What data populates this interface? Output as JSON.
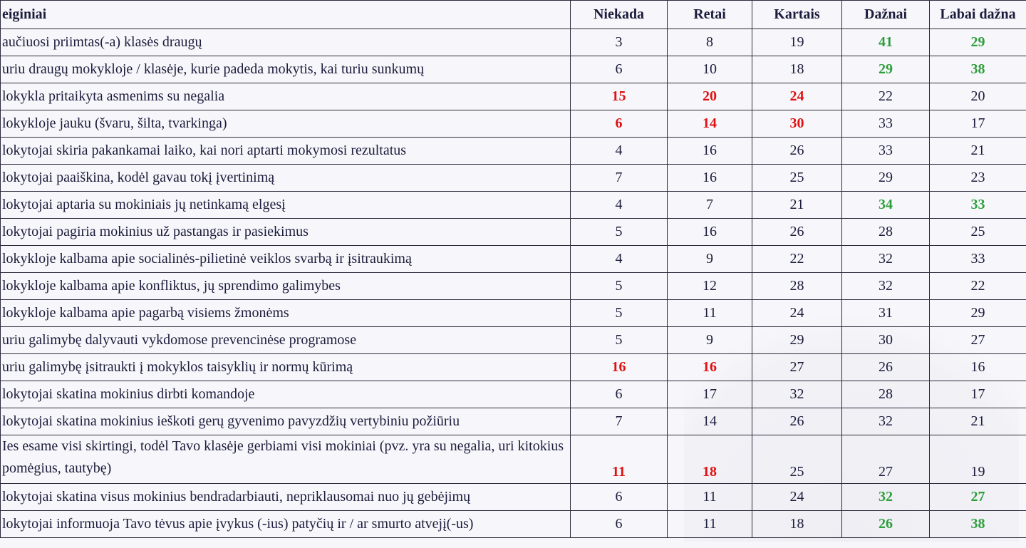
{
  "colors": {
    "high": "#2e9e3c",
    "low": "#e01010",
    "text": "#1c1c3c"
  },
  "table": {
    "headers": [
      "eiginiai",
      "Niekada",
      "Retai",
      "Kartais",
      "Dažnai",
      "Labai dažna"
    ],
    "rows": [
      {
        "label": "aučiuosi priimtas(-a) klasės draugų",
        "values": [
          3,
          8,
          19,
          41,
          29
        ],
        "hl": [
          "",
          "",
          "",
          "g",
          "g"
        ]
      },
      {
        "label": "uriu draugų mokykloje / klasėje, kurie padeda mokytis, kai turiu sunkumų",
        "values": [
          6,
          10,
          18,
          29,
          38
        ],
        "hl": [
          "",
          "",
          "",
          "g",
          "g"
        ]
      },
      {
        "label": "lokykla pritaikyta asmenims su negalia",
        "values": [
          15,
          20,
          24,
          22,
          20
        ],
        "hl": [
          "r",
          "r",
          "r",
          "",
          ""
        ]
      },
      {
        "label": "lokykloje jauku (švaru, šilta, tvarkinga)",
        "values": [
          6,
          14,
          30,
          33,
          17
        ],
        "hl": [
          "r",
          "r",
          "r",
          "",
          ""
        ]
      },
      {
        "label": "lokytojai skiria pakankamai laiko, kai nori aptarti mokymosi rezultatus",
        "values": [
          4,
          16,
          26,
          33,
          21
        ],
        "hl": [
          "",
          "",
          "",
          "",
          ""
        ]
      },
      {
        "label": "lokytojai paaiškina, kodėl gavau tokį įvertinimą",
        "values": [
          7,
          16,
          25,
          29,
          23
        ],
        "hl": [
          "",
          "",
          "",
          "",
          ""
        ]
      },
      {
        "label": "lokytojai aptaria su mokiniais jų netinkamą elgesį",
        "values": [
          4,
          7,
          21,
          34,
          33
        ],
        "hl": [
          "",
          "",
          "",
          "g",
          "g"
        ]
      },
      {
        "label": "lokytojai pagiria mokinius už pastangas ir pasiekimus",
        "values": [
          5,
          16,
          26,
          28,
          25
        ],
        "hl": [
          "",
          "",
          "",
          "",
          ""
        ]
      },
      {
        "label": "lokykloje kalbama apie socialinės-pilietinė veiklos svarbą ir įsitraukimą",
        "values": [
          4,
          9,
          22,
          32,
          33
        ],
        "hl": [
          "",
          "",
          "",
          "",
          ""
        ]
      },
      {
        "label": "lokykloje kalbama apie konfliktus, jų sprendimo galimybes",
        "values": [
          5,
          12,
          28,
          32,
          22
        ],
        "hl": [
          "",
          "",
          "",
          "",
          ""
        ]
      },
      {
        "label": "lokykloje kalbama apie pagarbą visiems žmonėms",
        "values": [
          5,
          11,
          24,
          31,
          29
        ],
        "hl": [
          "",
          "",
          "",
          "",
          ""
        ]
      },
      {
        "label": "uriu galimybę dalyvauti vykdomose prevencinėse programose",
        "values": [
          5,
          9,
          29,
          30,
          27
        ],
        "hl": [
          "",
          "",
          "",
          "",
          ""
        ]
      },
      {
        "label": "uriu galimybę įsitraukti į mokyklos taisyklių ir normų kūrimą",
        "values": [
          16,
          16,
          27,
          26,
          16
        ],
        "hl": [
          "r",
          "r",
          "",
          "",
          ""
        ]
      },
      {
        "label": "lokytojai skatina mokinius dirbti komandoje",
        "values": [
          6,
          17,
          32,
          28,
          17
        ],
        "hl": [
          "",
          "",
          "",
          "",
          ""
        ]
      },
      {
        "label": "lokytojai skatina mokinius ieškoti gerų gyvenimo pavyzdžių vertybiniu požiūriu",
        "values": [
          7,
          14,
          26,
          32,
          21
        ],
        "hl": [
          "",
          "",
          "",
          "",
          ""
        ]
      },
      {
        "label": "Ies esame visi skirtingi, todėl Tavo klasėje gerbiami visi mokiniai (pvz. yra su negalia, uri kitokius pomėgius, tautybę)",
        "values": [
          11,
          18,
          25,
          27,
          19
        ],
        "hl": [
          "r",
          "r",
          "",
          "",
          ""
        ]
      },
      {
        "label": "lokytojai skatina visus mokinius bendradarbiauti, nepriklausomai nuo jų gebėjimų",
        "values": [
          6,
          11,
          24,
          32,
          27
        ],
        "hl": [
          "",
          "",
          "",
          "g",
          "g"
        ]
      },
      {
        "label": "lokytojai informuoja Tavo tėvus apie įvykus (-ius) patyčių ir / ar smurto atvejį(-us)",
        "values": [
          6,
          11,
          18,
          26,
          38
        ],
        "hl": [
          "",
          "",
          "",
          "g",
          "g"
        ]
      }
    ]
  }
}
